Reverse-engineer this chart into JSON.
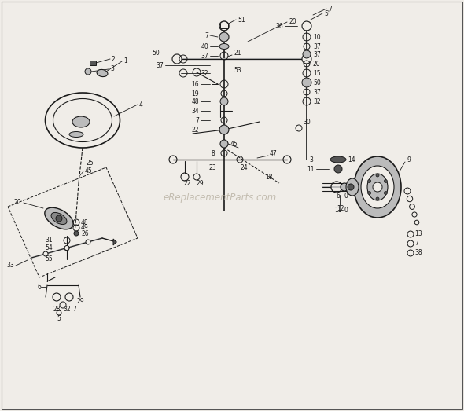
{
  "bg_color": "#f0ede8",
  "line_color": "#1a1a1a",
  "text_color": "#1a1a1a",
  "watermark": "eReplacementParts.com",
  "watermark_color": "#b0a898",
  "fig_width": 5.9,
  "fig_height": 5.23,
  "dpi": 100,
  "border_color": "#888888",
  "gray_part": "#555555",
  "mid_gray": "#888888",
  "light_gray": "#bbbbbb"
}
